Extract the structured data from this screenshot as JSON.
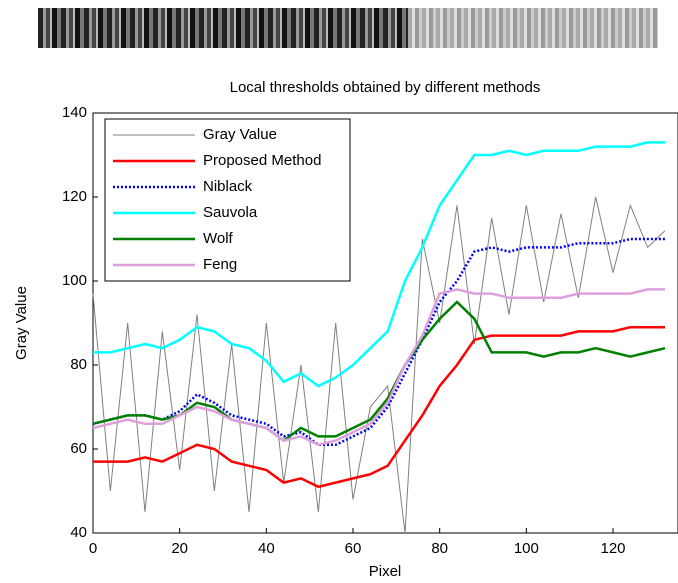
{
  "chart_data": {
    "type": "line",
    "title": "Local thresholds obtained by different methods",
    "x_label": "Pixel",
    "y_label": "Gray Value",
    "x": [
      0,
      4,
      8,
      12,
      16,
      20,
      24,
      28,
      32,
      36,
      40,
      44,
      48,
      52,
      56,
      60,
      64,
      68,
      72,
      76,
      80,
      84,
      88,
      92,
      96,
      100,
      104,
      108,
      112,
      116,
      120,
      124,
      128,
      132
    ],
    "series": [
      {
        "name": "Gray Value",
        "color": "#808080",
        "values": [
          97,
          50,
          90,
          45,
          88,
          55,
          92,
          50,
          85,
          45,
          90,
          52,
          80,
          45,
          90,
          48,
          70,
          75,
          40,
          110,
          90,
          118,
          85,
          115,
          92,
          118,
          95,
          116,
          96,
          120,
          102,
          118,
          108,
          112
        ]
      },
      {
        "name": "Proposed Method",
        "color": "#ff0000",
        "values": [
          57,
          57,
          57,
          58,
          57,
          59,
          61,
          60,
          57,
          56,
          55,
          52,
          53,
          51,
          52,
          53,
          54,
          56,
          62,
          68,
          75,
          80,
          86,
          87,
          87,
          87,
          87,
          87,
          88,
          88,
          88,
          89,
          89,
          89
        ]
      },
      {
        "name": "Niblack",
        "color": "#0000ff",
        "dashed": true,
        "values": [
          66,
          67,
          68,
          68,
          67,
          69,
          73,
          71,
          68,
          67,
          66,
          63,
          64,
          61,
          61,
          63,
          65,
          70,
          78,
          86,
          95,
          100,
          107,
          108,
          107,
          108,
          108,
          108,
          109,
          109,
          109,
          110,
          110,
          110
        ]
      },
      {
        "name": "Sauvola",
        "color": "#00ffff",
        "values": [
          83,
          83,
          84,
          85,
          84,
          86,
          89,
          88,
          85,
          84,
          81,
          76,
          78,
          75,
          77,
          80,
          84,
          88,
          100,
          108,
          118,
          124,
          130,
          130,
          131,
          130,
          131,
          131,
          131,
          132,
          132,
          132,
          133,
          133
        ]
      },
      {
        "name": "Wolf",
        "color": "#008000",
        "values": [
          66,
          67,
          68,
          68,
          67,
          68,
          71,
          70,
          67,
          66,
          65,
          62,
          65,
          63,
          63,
          65,
          67,
          72,
          80,
          86,
          91,
          95,
          91,
          83,
          83,
          83,
          82,
          83,
          83,
          84,
          83,
          82,
          83,
          84
        ]
      },
      {
        "name": "Feng",
        "color": "#dda0dd",
        "values": [
          65,
          66,
          67,
          66,
          66,
          68,
          70,
          69,
          67,
          66,
          65,
          62,
          63,
          61,
          62,
          64,
          66,
          71,
          80,
          87,
          97,
          98,
          97,
          97,
          96,
          96,
          96,
          96,
          97,
          97,
          97,
          97,
          98,
          98
        ]
      }
    ],
    "xlim": [
      0,
      135
    ],
    "ylim": [
      40,
      140
    ],
    "xticks": [
      0,
      20,
      40,
      60,
      80,
      100,
      120
    ],
    "yticks": [
      40,
      60,
      80,
      100,
      120,
      140
    ],
    "legend": "upper left"
  }
}
